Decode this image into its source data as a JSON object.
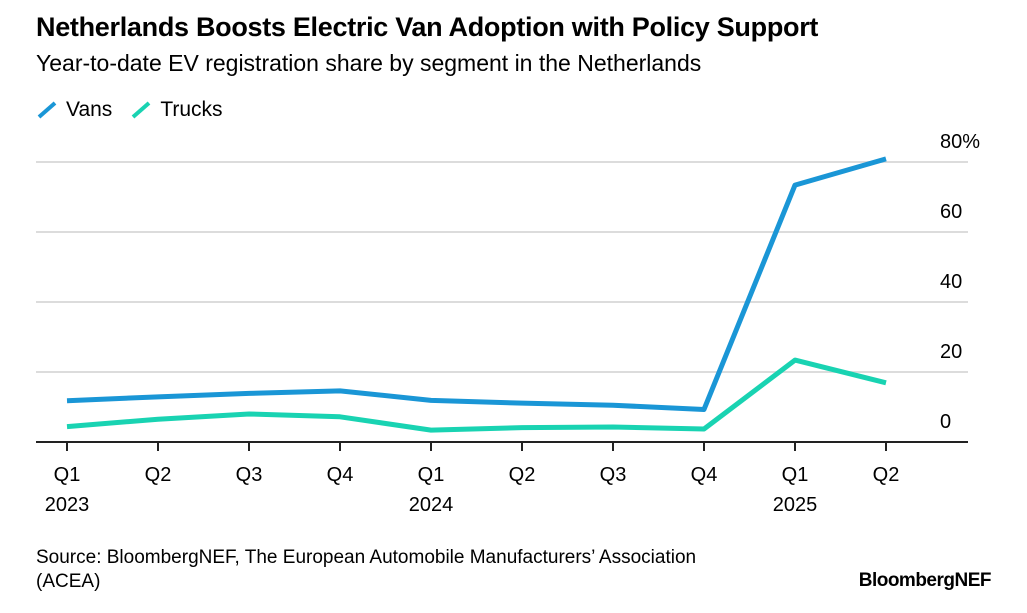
{
  "title": "Netherlands Boosts Electric Van Adoption with Policy Support",
  "subtitle": "Year-to-date EV registration share by segment in the Netherlands",
  "source": "Source: BloombergNEF, The European Automobile Manufacturers’ Association (ACEA)",
  "logo": "BloombergNEF",
  "chart_data": {
    "type": "line",
    "categories": [
      "Q1 2023",
      "Q2",
      "Q3",
      "Q4",
      "Q1 2024",
      "Q2",
      "Q3",
      "Q4",
      "Q1 2025",
      "Q2"
    ],
    "x_tick_labels": [
      [
        "Q1",
        "2023"
      ],
      [
        "Q2",
        ""
      ],
      [
        "Q3",
        ""
      ],
      [
        "Q4",
        ""
      ],
      [
        "Q1",
        "2024"
      ],
      [
        "Q2",
        ""
      ],
      [
        "Q3",
        ""
      ],
      [
        "Q4",
        ""
      ],
      [
        "Q1",
        "2025"
      ],
      [
        "Q2",
        ""
      ]
    ],
    "series": [
      {
        "name": "Vans",
        "color": "#1a96d6",
        "values": [
          11.8,
          12.9,
          13.9,
          14.6,
          11.9,
          11.1,
          10.5,
          9.3,
          73.4,
          80.9
        ]
      },
      {
        "name": "Trucks",
        "color": "#19d3b2",
        "values": [
          4.4,
          6.5,
          8.0,
          7.2,
          3.4,
          4.1,
          4.3,
          3.7,
          23.4,
          16.9
        ]
      }
    ],
    "y_ticks": [
      0,
      20,
      40,
      60,
      80
    ],
    "y_tick_labels": [
      "0",
      "20",
      "40",
      "60",
      "80%"
    ],
    "ylim": [
      0,
      80
    ],
    "y_axis_position": "right",
    "grid": true,
    "legend_placement": "top-left"
  }
}
